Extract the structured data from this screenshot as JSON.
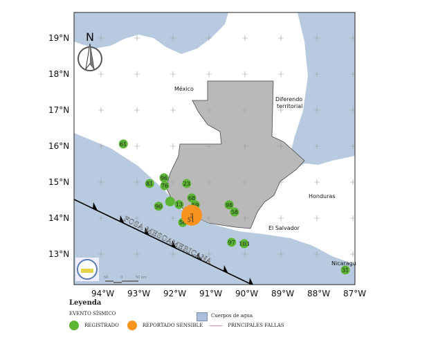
{
  "map": {
    "lon_ticks": [
      "94°W",
      "93°W",
      "92°W",
      "91°W",
      "90°W",
      "89°W",
      "88°W",
      "87°W"
    ],
    "lat_ticks": [
      "19°N",
      "18°N",
      "17°N",
      "16°N",
      "15°N",
      "14°N",
      "13°N"
    ],
    "north_label": "N",
    "place_labels": {
      "mexico": "México",
      "diferendo": "Diferendo",
      "territorial": "territorial",
      "honduras": "Honduras",
      "el_salvador": "El Salvador",
      "nicaragua": "Nicaragu"
    },
    "trench_label": "FOSA MESOAMERICANA",
    "scale": {
      "left": "50",
      "mid": "0",
      "right": "50 km"
    },
    "colors": {
      "water": "#b7cadf",
      "land": "#ffffff",
      "guatemala": "#b9b9b9",
      "registrado": "#5db536",
      "sensible": "#f7931e"
    },
    "events": [
      {
        "label": "61",
        "lon": -93.38,
        "lat": 16.06,
        "type": "registrado"
      },
      {
        "label": "81",
        "lon": -92.65,
        "lat": 14.96,
        "type": "registrado"
      },
      {
        "label": "96",
        "lon": -92.25,
        "lat": 15.12,
        "type": "registrado"
      },
      {
        "label": "76",
        "lon": -92.23,
        "lat": 14.9,
        "type": "registrado"
      },
      {
        "label": "23",
        "lon": -91.62,
        "lat": 14.96,
        "type": "registrado"
      },
      {
        "label": "68",
        "lon": -91.48,
        "lat": 14.56,
        "type": "registrado"
      },
      {
        "label": "59",
        "lon": -91.38,
        "lat": 14.37,
        "type": "registrado"
      },
      {
        "label": "",
        "lon": -92.08,
        "lat": 14.46,
        "type": "registrado"
      },
      {
        "label": "13",
        "lon": -91.83,
        "lat": 14.38,
        "type": "registrado"
      },
      {
        "label": "90",
        "lon": -92.4,
        "lat": 14.33,
        "type": "registrado"
      },
      {
        "label": "98",
        "lon": -90.44,
        "lat": 14.37,
        "type": "registrado"
      },
      {
        "label": "58",
        "lon": -90.29,
        "lat": 14.17,
        "type": "registrado"
      },
      {
        "label": "56",
        "lon": -91.73,
        "lat": 13.88,
        "type": "registrado"
      },
      {
        "label": "97",
        "lon": -90.37,
        "lat": 13.33,
        "type": "registrado"
      },
      {
        "label": "103",
        "lon": -90.02,
        "lat": 13.29,
        "type": "registrado"
      },
      {
        "label": "31",
        "lon": -87.21,
        "lat": 12.56,
        "type": "registrado"
      },
      {
        "label": "3",
        "lon": -91.48,
        "lat": 14.08,
        "type": "sensible"
      },
      {
        "label": "51",
        "lon": -91.5,
        "lat": 13.95,
        "type": "sensible-label"
      }
    ]
  },
  "legend": {
    "title": "Leyenda",
    "subtitle": "EVENTO SÍSMICO",
    "registrado": "REGISTRADO",
    "sensible": "REPORTADO SENSIBLE",
    "water": "Cuerpos de agua",
    "faults": "PRINCIPALES FALLAS"
  }
}
